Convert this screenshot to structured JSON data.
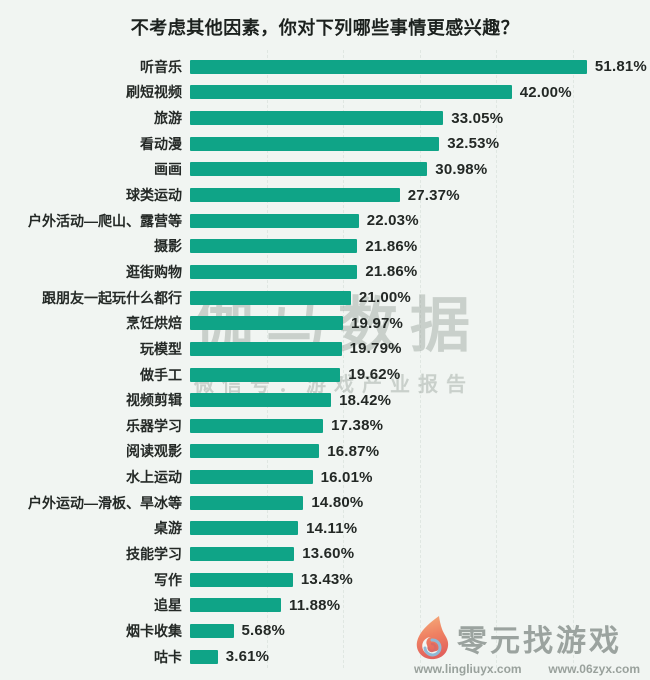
{
  "title": "不考虑其他因素，你对下列哪些事情更感兴趣？",
  "chart_data": {
    "type": "bar",
    "orientation": "horizontal",
    "title": "不考虑其他因素，你对下列哪些事情更感兴趣？",
    "xlabel": "",
    "ylabel": "",
    "xlim": [
      0,
      60
    ],
    "grid": "vertical dashed gridlines every 10%",
    "gridlines_percent": [
      10,
      20,
      30,
      40,
      50,
      60
    ],
    "legend": "none",
    "bar_color": "#0fa487",
    "categories": [
      "听音乐",
      "刷短视频",
      "旅游",
      "看动漫",
      "画画",
      "球类运动",
      "户外活动—爬山、露营等",
      "摄影",
      "逛街购物",
      "跟朋友一起玩什么都行",
      "烹饪烘焙",
      "玩模型",
      "做手工",
      "视频剪辑",
      "乐器学习",
      "阅读观影",
      "水上运动",
      "户外运动—滑板、旱冰等",
      "桌游",
      "技能学习",
      "写作",
      "追星",
      "烟卡收集",
      "咕卡"
    ],
    "values": [
      51.81,
      42.0,
      33.05,
      32.53,
      30.98,
      27.37,
      22.03,
      21.86,
      21.86,
      21.0,
      19.97,
      19.79,
      19.62,
      18.42,
      17.38,
      16.87,
      16.01,
      14.8,
      14.11,
      13.6,
      13.43,
      11.88,
      5.68,
      3.61
    ],
    "value_labels": [
      "51.81%",
      "42.00%",
      "33.05%",
      "32.53%",
      "30.98%",
      "27.37%",
      "22.03%",
      "21.86%",
      "21.86%",
      "21.00%",
      "19.97%",
      "19.79%",
      "19.62%",
      "18.42%",
      "17.38%",
      "16.87%",
      "16.01%",
      "14.80%",
      "14.11%",
      "13.60%",
      "13.43%",
      "11.88%",
      "5.68%",
      "3.61%"
    ]
  },
  "watermark": {
    "main": "伽马数据",
    "sub": "微信号：游戏产业报告"
  },
  "footer": {
    "brand": "零元找游戏",
    "brand_icon": "flame-swirl-icon",
    "url_left": "www.lingliuyx.com",
    "url_right": "www.06zyx.com"
  },
  "colors": {
    "background": "#f1f5f2",
    "bar": "#0fa487",
    "text": "#242926",
    "watermark": "rgba(143,152,146,0.40)",
    "gridline": "#e0e7e2",
    "footer_text": "#9ba39f"
  }
}
